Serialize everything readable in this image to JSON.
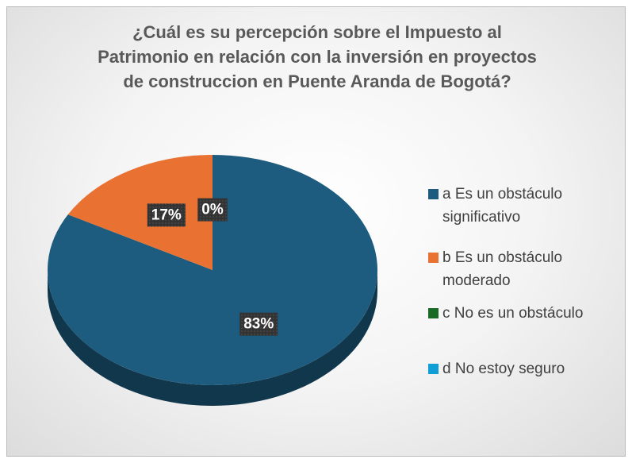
{
  "chart_data": {
    "type": "pie",
    "title": "¿Cuál es su percepción sobre el Impuesto al Patrimonio en relación con la inversión en proyectos de construccion en Puente Aranda de Bogotá?",
    "categories": [
      "a Es un obstáculo significativo",
      "b  Es un obstáculo moderado",
      "c  No es un obstáculo",
      "d No estoy seguro"
    ],
    "values": [
      83,
      17,
      0,
      0
    ],
    "value_labels": [
      "83%",
      "17%",
      "0%",
      null
    ],
    "colors": [
      "#1d5c7e",
      "#e97132",
      "#196b24",
      "#0f9ed5"
    ],
    "legend": "right"
  }
}
